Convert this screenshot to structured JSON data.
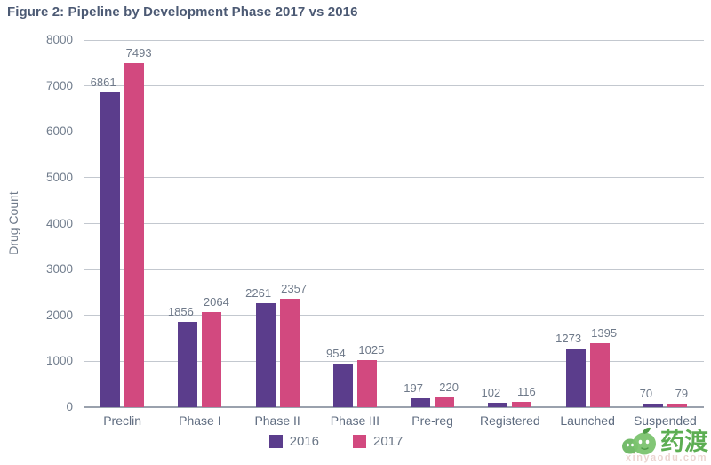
{
  "title": "Figure 2: Pipeline by Development Phase 2017 vs 2016",
  "watermark": {
    "logo": "yaodu-logo",
    "text": "药渡",
    "subtext": "xinyaodu.com",
    "green": "#5dae53"
  },
  "chart_data": {
    "type": "bar",
    "title": "Figure 2: Pipeline by Development Phase 2017 vs 2016",
    "categories": [
      "Preclin",
      "Phase I",
      "Phase II",
      "Phase III",
      "Pre-reg",
      "Registered",
      "Launched",
      "Suspended"
    ],
    "series": [
      {
        "name": "2016",
        "color": "#5b3d8c",
        "values": [
          6861,
          1856,
          2261,
          954,
          197,
          102,
          1273,
          70
        ]
      },
      {
        "name": "2017",
        "color": "#d2497f",
        "values": [
          7493,
          2064,
          2357,
          1025,
          220,
          116,
          1395,
          79
        ]
      }
    ],
    "xlabel": "",
    "ylabel": "Drug Count",
    "ylim": [
      0,
      8000
    ],
    "ytick_step": 1000,
    "grid": true,
    "legend_position": "bottom-center",
    "colors": {
      "grid": "#c3c8cf",
      "axis": "#9aa1ad",
      "tick_text": "#707c8c",
      "value_label_text": "#6e7989",
      "title_text": "#4c5a74"
    }
  }
}
